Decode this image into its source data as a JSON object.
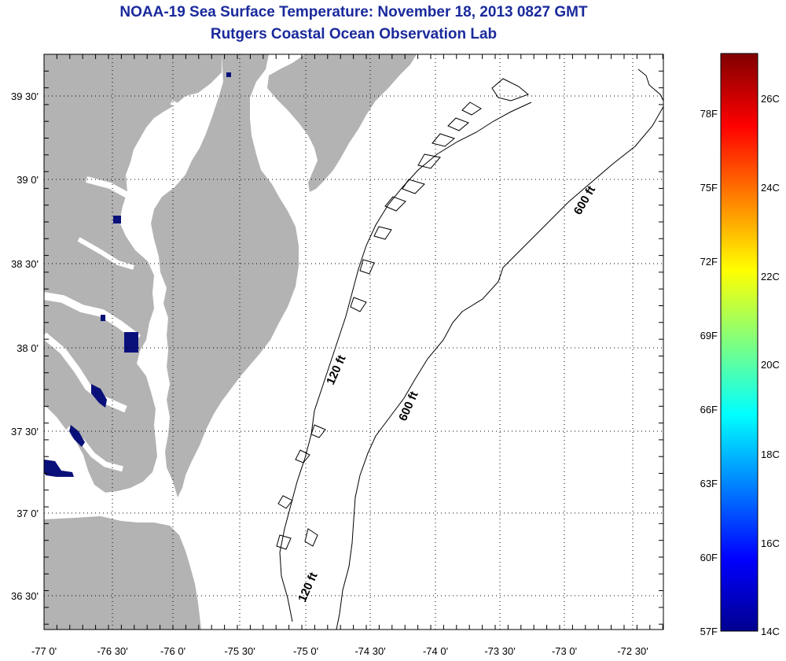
{
  "header": {
    "title": "NOAA-19 Sea Surface Temperature:  November 18, 2013 0827 GMT",
    "subtitle": "Rutgers Coastal Ocean Observation Lab"
  },
  "map": {
    "lat_labels": [
      "39 30'",
      "39 0'",
      "38 30'",
      "38 0'",
      "37 30'",
      "37 0'",
      "36 30'"
    ],
    "lon_labels": [
      "-77 0'",
      "-76 30'",
      "-76 0'",
      "-75 30'",
      "-75 0'",
      "-74 30'",
      "-74 0'",
      "-73 30'",
      "-73 0'",
      "-72 30'"
    ],
    "isobath_labels": {
      "a": "600 ft",
      "b": "600 ft",
      "c": "120 ft",
      "d": "120 ft"
    },
    "colors": {
      "land": "#b3b3b3",
      "water": "#ffffff",
      "cold_pixels": "#0a107a",
      "frame": "#000000"
    }
  },
  "colorbar": {
    "fahrenheit_labels": [
      "78F",
      "75F",
      "72F",
      "69F",
      "66F",
      "63F",
      "60F",
      "57F"
    ],
    "celsius_labels": [
      "26C",
      "24C",
      "22C",
      "20C",
      "18C",
      "16C",
      "14C"
    ],
    "colormap": "jet"
  }
}
